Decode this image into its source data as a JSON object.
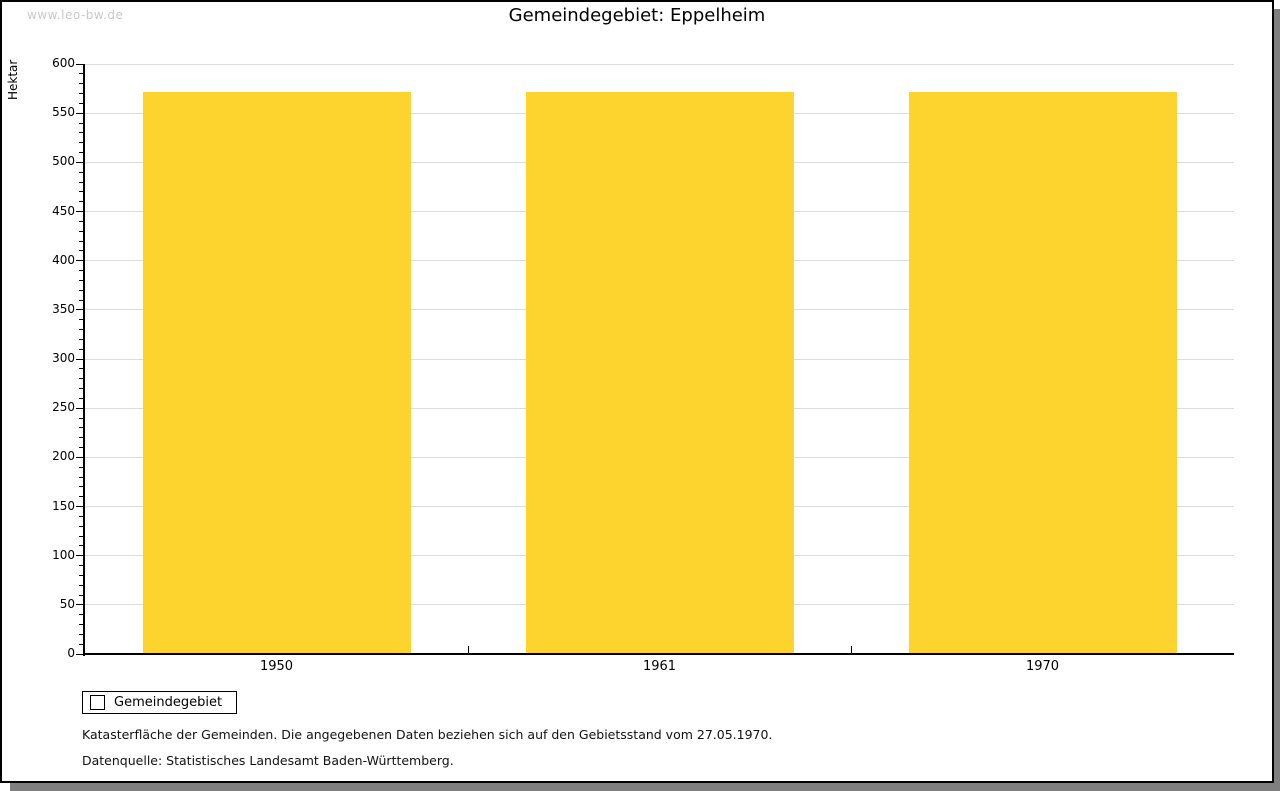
{
  "watermark": "www.leo-bw.de",
  "header": {
    "title": "Gemeindegebiet: Eppelheim"
  },
  "legend": {
    "label": "Gemeindegebiet"
  },
  "footnotes": {
    "line1": "Katasterfläche der Gemeinden. Die angegebenen Daten beziehen sich auf den Gebietsstand vom 27.05.1970.",
    "line2": "Datenquelle: Statistisches Landesamt Baden-Württemberg."
  },
  "colors": {
    "bar": "#FCD42D",
    "grid": "#DCDCDC",
    "axis": "#000000",
    "watermark": "#C9C9C9",
    "shadow": "#7F7F7F"
  },
  "chart_data": {
    "type": "bar",
    "title": "Gemeindegebiet: Eppelheim",
    "categories": [
      "1950",
      "1961",
      "1970"
    ],
    "series": [
      {
        "name": "Gemeindegebiet",
        "values": [
          572,
          572,
          572
        ]
      }
    ],
    "xlabel": "",
    "ylabel": "Hektar",
    "ylim": [
      0,
      600
    ],
    "y_major_step": 50,
    "y_minor_step": 10,
    "grid": "horizontal-major-lines",
    "legend_position": "bottom-left"
  }
}
